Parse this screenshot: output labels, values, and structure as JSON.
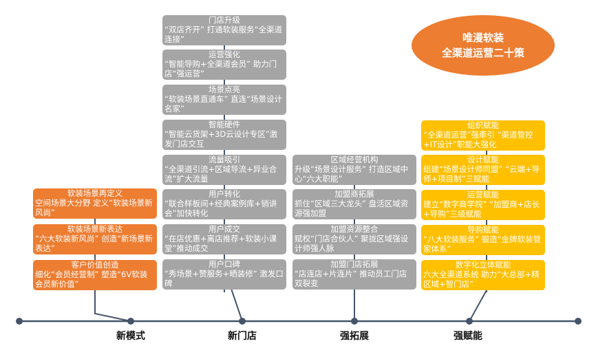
{
  "title": {
    "line1": "唯漫软装",
    "line2": "全渠道运营二十策"
  },
  "colors": {
    "gray": "#a5a5a5",
    "orange": "#ed7d31",
    "yellow": "#ffc000",
    "line": "#44546a"
  },
  "timeline": {
    "labels": [
      "新模式",
      "新门店",
      "强拓展",
      "强赋能"
    ]
  },
  "columns": {
    "new_mode": [
      {
        "title": "软装场景再定义",
        "body": "空间场景大分野 定义“软装场景新风尚”"
      },
      {
        "title": "软装场景新表达",
        "body": " “六大软装新风尚” 创造“新场景新表达”"
      },
      {
        "title": "客户价值创造",
        "body": "细化“会员经营制” 塑造“6V软装会员新价值”"
      }
    ],
    "new_store": [
      {
        "title": "门店升级",
        "body": " “双店齐开” 打通软装服务“全渠道连接”"
      },
      {
        "title": "运营强化",
        "body": " “智能导购+全渠道会员” 助力门店“强运营”"
      },
      {
        "title": "场景点亮",
        "body": " “软装场景直通车” 直连“场景设计名家”"
      },
      {
        "title": "智能硬件",
        "body": " “智能云货架+3D云设计专区”激发门店交互"
      },
      {
        "title": "流量吸引",
        "body": " “全渠道引流+区域导流+异业合流”扩大流量"
      },
      {
        "title": "用户转化",
        "body": " “联合样板间+经典案例库+销讲会”加快转化"
      },
      {
        "title": "用户成交",
        "body": " “在店优惠+离店推荐+软装小课堂”推动成交"
      },
      {
        "title": "用户口碑",
        "body": " “秀场景+赞服务+晒装修” 激发口碑"
      }
    ],
    "strong_expansion": [
      {
        "title": "区域经营机构",
        "body": "升级“场景设计服务” 打造区域中心“六大职能”"
      },
      {
        "title": "加盟商拓展",
        "body": "抓住“区域三大龙头” 盘活区域资源强加盟"
      },
      {
        "title": "加盟资源整合",
        "body": "赋权“门店合伙人” 聚拢区域强设计师强人脉"
      },
      {
        "title": "加盟门店拓展",
        "body": " “店连店+片连片” 推动员工门店双裂变"
      }
    ],
    "strong_empower": [
      {
        "title": "组织赋能",
        "body": " “全渠道运营”强牵引 “渠道管控+IT设计”职能大强化"
      },
      {
        "title": "设计赋能",
        "body": "组建“场景设计师同盟” “云端+导师+项目制”三赋能"
      },
      {
        "title": "运营赋能",
        "body": "建立“数字商学院” “加盟商+店长+导购”三级赋能"
      },
      {
        "title": "导购赋能",
        "body": " “八大软装服务” 锻造“金牌软装管家体系”"
      },
      {
        "title": "数字化立体赋能",
        "body": "六大全渠道系统 助力“大总部+精区域+智门店”"
      }
    ]
  }
}
